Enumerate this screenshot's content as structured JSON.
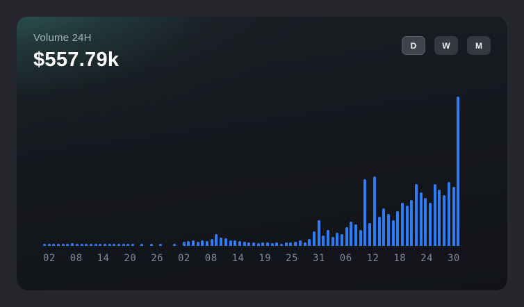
{
  "card": {
    "title": "Volume 24H",
    "value": "$557.79k",
    "periods": [
      {
        "label": "D",
        "selected": true
      },
      {
        "label": "W",
        "selected": false
      },
      {
        "label": "M",
        "selected": false
      }
    ]
  },
  "colors": {
    "bar": "#2e7bf6",
    "card_bg": "#14171c",
    "accent_glow": "#52baa3",
    "title_text": "#9fb6b9",
    "value_text": "#ffffff",
    "axis_text": "#83878f",
    "button_bg": "#34383f",
    "button_selected_bg": "#3f444c"
  },
  "chart_data": {
    "type": "bar",
    "title": "Volume 24H",
    "current_value_label": "$557.79k",
    "unit": "USD thousands (estimated from bar heights)",
    "legend": "none",
    "grid": false,
    "ylim": [
      0,
      560
    ],
    "x_tick_labels": [
      "02",
      "08",
      "14",
      "20",
      "26",
      "02",
      "08",
      "14",
      "19",
      "25",
      "31",
      "06",
      "12",
      "18",
      "24",
      "30"
    ],
    "values": [
      8,
      6,
      9,
      7,
      5,
      8,
      10,
      6,
      7,
      9,
      5,
      8,
      7,
      6,
      9,
      8,
      7,
      5,
      6,
      4,
      0,
      3,
      0,
      4,
      0,
      5,
      0,
      0,
      4,
      0,
      15,
      18,
      20,
      16,
      22,
      18,
      25,
      45,
      30,
      28,
      22,
      20,
      18,
      15,
      12,
      14,
      10,
      12,
      14,
      10,
      12,
      8,
      14,
      12,
      16,
      20,
      14,
      25,
      55,
      95,
      40,
      60,
      35,
      50,
      45,
      70,
      90,
      80,
      60,
      250,
      85,
      260,
      110,
      140,
      120,
      95,
      130,
      160,
      150,
      170,
      230,
      200,
      180,
      160,
      230,
      210,
      190,
      240,
      220,
      557.79
    ]
  }
}
